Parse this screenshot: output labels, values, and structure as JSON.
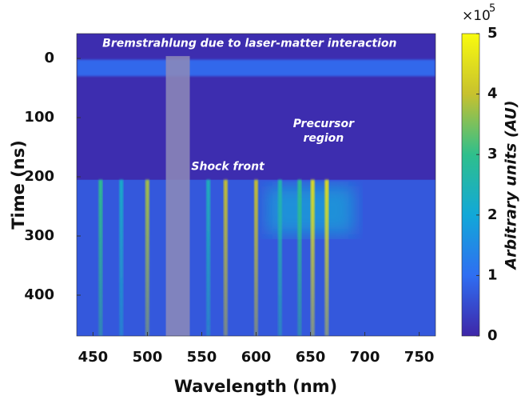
{
  "chart_data": {
    "type": "heatmap",
    "x_label": "Wavelength (nm)",
    "y_label": "Time (ns)",
    "colorbar_label": "Arbitrary units (AU)",
    "colorbar_multiplier": "×10",
    "colorbar_exponent": "5",
    "xlim": [
      435,
      765
    ],
    "xticks": [
      450,
      500,
      550,
      600,
      650,
      700,
      750
    ],
    "ylim": [
      -42,
      469
    ],
    "yticks": [
      0,
      100,
      200,
      300,
      400
    ],
    "y_inverted": true,
    "clim": [
      0,
      5
    ],
    "cticks": [
      0,
      1,
      2,
      3,
      4,
      5
    ],
    "colormap": [
      "#3e26a8",
      "#2f6ef2",
      "#12a8d8",
      "#2ebf8c",
      "#c7c12e",
      "#f9fb0e"
    ],
    "background": 0.1,
    "after_onset": 0.7,
    "onset_time": 205,
    "bremsstrahlung_time": [
      2,
      30
    ],
    "bremsstrahlung_value": 0.9,
    "blocked_band": [
      517,
      539
    ],
    "broad_emission": {
      "xlim": [
        610,
        690
      ],
      "value": 2.0
    },
    "emission_lines": {
      "x": [
        457,
        476,
        500,
        556,
        572,
        600,
        622,
        640,
        652,
        665
      ],
      "values": [
        3.0,
        2.2,
        3.8,
        2.4,
        4.0,
        4.0,
        2.6,
        3.0,
        4.5,
        4.5
      ]
    },
    "annotations": [
      {
        "text": "Bremstrahlung due to laser-matter interaction",
        "x": 594,
        "y": -25
      },
      {
        "text": "Shock front",
        "x": 574,
        "y": 183
      },
      {
        "text": "Precursor",
        "x": 662,
        "y": 111
      },
      {
        "text": "region",
        "x": 662,
        "y": 135
      }
    ]
  }
}
